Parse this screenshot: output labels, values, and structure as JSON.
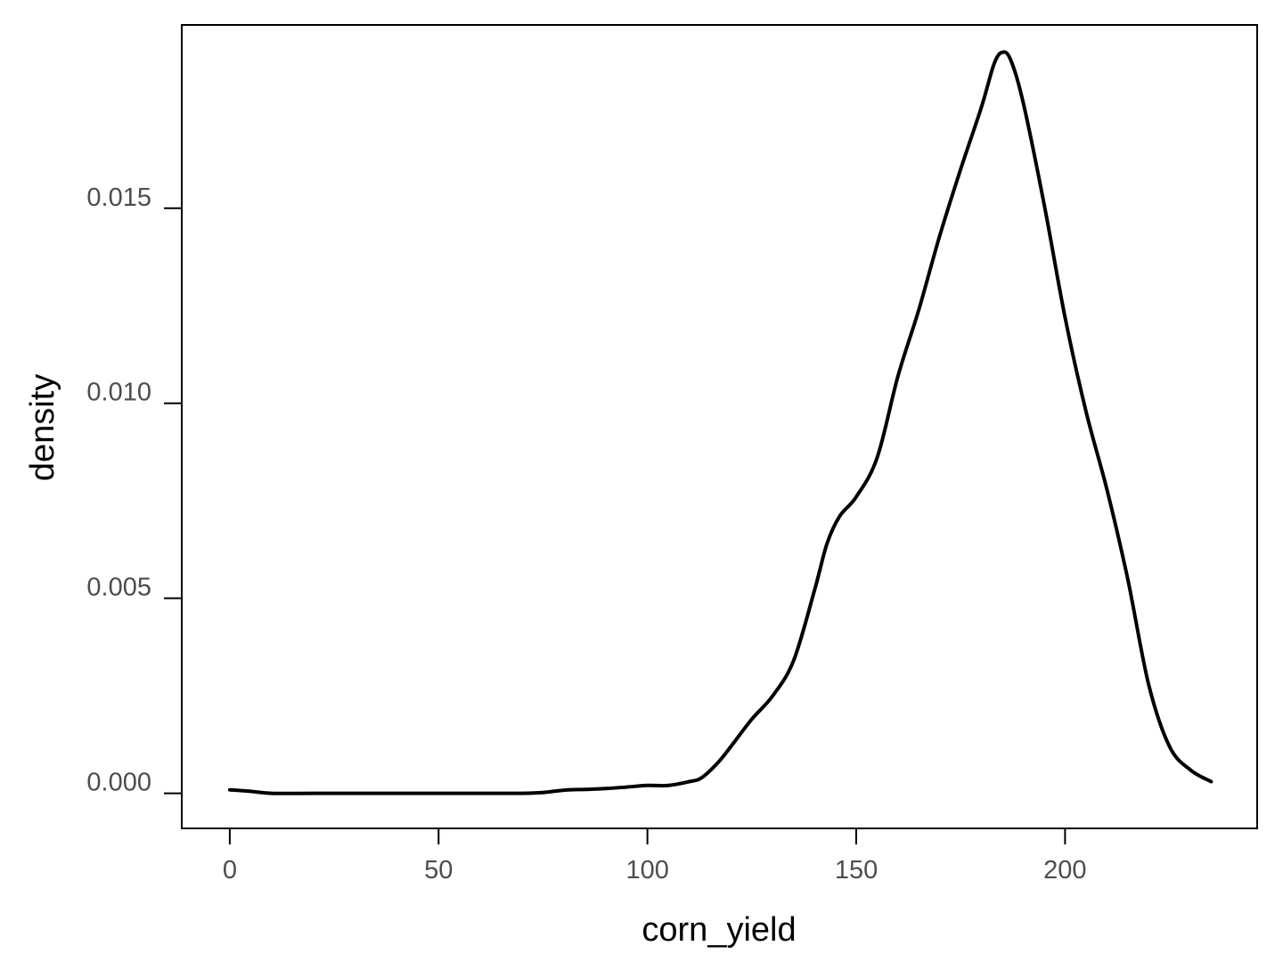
{
  "chart_data": {
    "type": "line",
    "title": "",
    "xlabel": "corn_yield",
    "ylabel": "density",
    "xlim": [
      -11.5,
      246
    ],
    "ylim": [
      -0.0009,
      0.0197
    ],
    "x_ticks": [
      0,
      50,
      100,
      150,
      200
    ],
    "x_tick_labels": [
      "0",
      "50",
      "100",
      "150",
      "200"
    ],
    "y_ticks": [
      0.0,
      0.005,
      0.01,
      0.015
    ],
    "y_tick_labels": [
      "0.000",
      "0.005",
      "0.010",
      "0.015"
    ],
    "grid": false,
    "legend": "none",
    "colors": {
      "line": "#000000",
      "frame": "#000000",
      "tick_text": "#4d4d4d"
    },
    "series": [
      {
        "x": [
          0,
          5,
          10,
          20,
          30,
          40,
          50,
          60,
          70,
          75,
          80,
          85,
          90,
          95,
          100,
          105,
          110,
          113,
          117,
          120,
          125,
          130,
          135,
          140,
          143,
          146,
          150,
          155,
          160,
          165,
          170,
          175,
          180,
          183,
          185,
          187,
          190,
          195,
          200,
          205,
          210,
          215,
          220,
          225,
          230,
          235
        ],
        "y": [
          9e-05,
          5e-05,
          0.0,
          0.0,
          0.0,
          0.0,
          0.0,
          0.0,
          0.0,
          2e-05,
          8e-05,
          0.0001,
          0.00012,
          0.00016,
          0.0002,
          0.0002,
          0.0003,
          0.0004,
          0.0008,
          0.0012,
          0.0019,
          0.0025,
          0.0034,
          0.0052,
          0.0064,
          0.0071,
          0.0076,
          0.0086,
          0.0107,
          0.0124,
          0.0143,
          0.016,
          0.0176,
          0.0187,
          0.019,
          0.0188,
          0.0177,
          0.0151,
          0.0122,
          0.0098,
          0.0078,
          0.0055,
          0.0028,
          0.0012,
          0.0006,
          0.0003
        ]
      }
    ]
  }
}
